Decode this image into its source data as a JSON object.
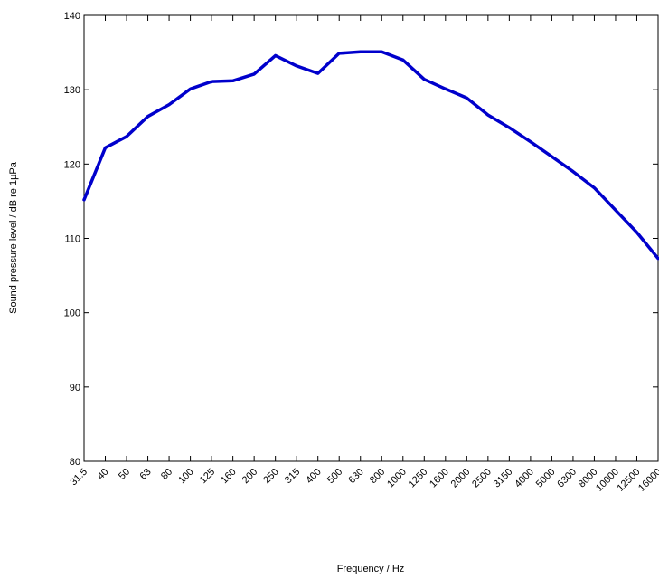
{
  "chart_data": {
    "type": "line",
    "title": "",
    "xlabel": "Frequency / Hz",
    "ylabel": "Sound pressure level / dB re 1µPa",
    "ylim": [
      80,
      140
    ],
    "yticks": [
      80,
      90,
      100,
      110,
      120,
      130,
      140
    ],
    "grid": false,
    "categories": [
      "31.5",
      "40",
      "50",
      "63",
      "80",
      "100",
      "125",
      "160",
      "200",
      "250",
      "315",
      "400",
      "500",
      "630",
      "800",
      "1000",
      "1250",
      "1600",
      "2000",
      "2500",
      "3150",
      "4000",
      "5000",
      "6300",
      "8000",
      "10000",
      "12500",
      "16000"
    ],
    "series": [
      {
        "color": "#0000cc",
        "values": [
          115.2,
          122.2,
          123.7,
          126.4,
          128.0,
          130.1,
          131.1,
          131.2,
          132.1,
          134.6,
          133.2,
          132.2,
          134.9,
          135.1,
          135.1,
          134.0,
          131.4,
          130.1,
          128.9,
          126.6,
          124.9,
          123.0,
          121.0,
          119.0,
          116.8,
          113.8,
          110.8,
          107.3
        ]
      }
    ]
  }
}
